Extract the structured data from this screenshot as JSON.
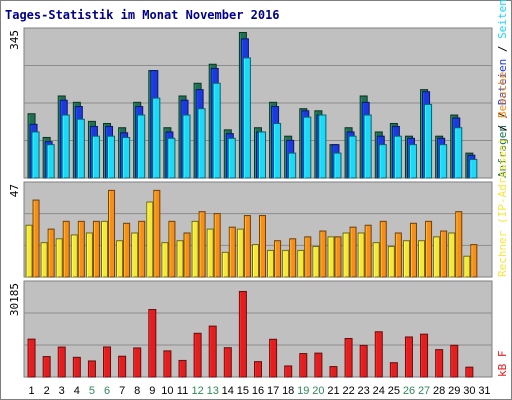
{
  "title": "Tages-Statistik im Monat November 2016",
  "colors": {
    "background": "#ffffff",
    "plot_bg": "#c0c0c0",
    "gridline": "#8c8c8c",
    "title": "#00008b",
    "anfragen": "#1e7050",
    "dateien": "#1a3ae0",
    "seiten": "#1ed8f8",
    "rechner": "#f5e83a",
    "besuche": "#f78e1a",
    "kbf": "#e41e1e",
    "weekday_tick": "#000000",
    "weekend_tick": "#2e8b57"
  },
  "chart_data": [
    {
      "type": "bar",
      "name_key": "top",
      "ymax_label": "345",
      "ymax": 345,
      "categories": [
        "1",
        "2",
        "3",
        "4",
        "5",
        "6",
        "7",
        "8",
        "9",
        "10",
        "11",
        "12",
        "13",
        "14",
        "15",
        "16",
        "17",
        "18",
        "19",
        "20",
        "21",
        "22",
        "23",
        "24",
        "25",
        "26",
        "27",
        "28",
        "29",
        "30",
        "31"
      ],
      "weekend_days": [
        5,
        6,
        12,
        13,
        19,
        20,
        26,
        27
      ],
      "legend": [
        {
          "key": "anfragen",
          "label": "Anfragen"
        },
        {
          "key": "dateien",
          "label": "Dateien"
        },
        {
          "key": "seiten",
          "label": "Seiten"
        }
      ],
      "series": [
        {
          "key": "anfragen",
          "values": [
            153,
            97,
            195,
            180,
            135,
            130,
            120,
            180,
            255,
            120,
            195,
            225,
            270,
            115,
            345,
            120,
            180,
            100,
            165,
            160,
            80,
            120,
            195,
            110,
            130,
            100,
            210,
            100,
            150,
            60,
            0
          ]
        },
        {
          "key": "dateien",
          "values": [
            128,
            87,
            185,
            170,
            123,
            123,
            108,
            170,
            255,
            110,
            185,
            210,
            260,
            106,
            330,
            110,
            170,
            90,
            160,
            150,
            80,
            110,
            180,
            100,
            123,
            95,
            205,
            95,
            143,
            55,
            0
          ]
        },
        {
          "key": "seiten",
          "values": [
            110,
            80,
            150,
            140,
            100,
            100,
            97,
            150,
            190,
            95,
            150,
            165,
            225,
            95,
            285,
            110,
            130,
            60,
            145,
            150,
            60,
            100,
            150,
            80,
            100,
            80,
            175,
            80,
            120,
            45,
            0
          ]
        }
      ]
    },
    {
      "type": "bar",
      "name_key": "middle",
      "ymax_label": "47",
      "ymax": 47,
      "legend": [
        {
          "key": "rechner",
          "label": "Rechner (IP-Adressen)"
        },
        {
          "key": "besuche",
          "label": "Besuche"
        }
      ],
      "series": [
        {
          "key": "rechner",
          "values": [
            27,
            18,
            20,
            22,
            23,
            29,
            19,
            23,
            39,
            18,
            19,
            29,
            25,
            13,
            25,
            17,
            14,
            14,
            14,
            16,
            21,
            23,
            23,
            18,
            16,
            19,
            19,
            21,
            23,
            11,
            0
          ]
        },
        {
          "key": "besuche",
          "values": [
            40,
            25,
            29,
            29,
            29,
            45,
            28,
            29,
            45,
            29,
            23,
            34,
            33,
            26,
            32,
            32,
            19,
            20,
            21,
            24,
            21,
            26,
            27,
            29,
            23,
            28,
            29,
            24,
            34,
            17,
            0
          ]
        }
      ]
    },
    {
      "type": "bar",
      "name_key": "bottom",
      "ymax_label": "30185",
      "ymax": 30185,
      "legend": [
        {
          "key": "kbf",
          "label": "kB F"
        }
      ],
      "series": [
        {
          "key": "kbf",
          "values": [
            12590,
            6870,
            9980,
            6620,
            5430,
            10020,
            6980,
            9700,
            22300,
            8740,
            5600,
            14500,
            16860,
            9780,
            28230,
            5200,
            12540,
            3790,
            7850,
            8000,
            3590,
            12800,
            10540,
            15010,
            4860,
            13300,
            14210,
            9150,
            10570,
            3390,
            0
          ]
        }
      ]
    }
  ]
}
